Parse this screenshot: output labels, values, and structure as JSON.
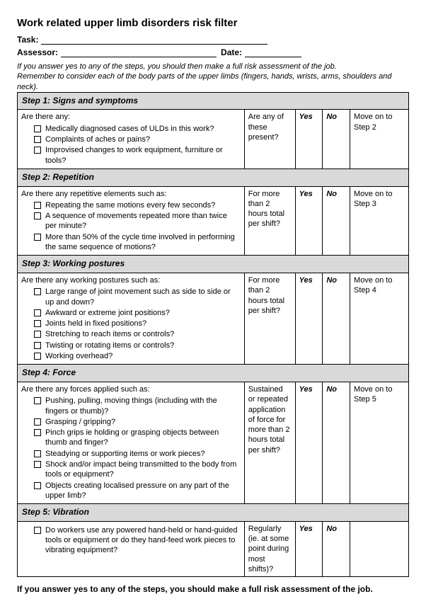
{
  "title": "Work related upper limb disorders risk filter",
  "labels": {
    "task": "Task:",
    "assessor": "Assessor:",
    "date": "Date:"
  },
  "intro_line1": "If you answer yes to any of the steps, you should then make a full risk assessment of the job.",
  "intro_line2": "Remember to consider each of the body parts of the upper limbs (fingers, hands, wrists, arms, shoulders and neck).",
  "yn": {
    "yes": "Yes",
    "no": "No"
  },
  "steps": [
    {
      "header": "Step 1: Signs and symptoms",
      "question": "Are there any:",
      "items": [
        "Medically diagnosed cases of ULDs in this work?",
        "Complaints of aches or pains?",
        "Improvised changes to work equipment, furniture or tools?"
      ],
      "subq": "Are any of these present?",
      "action": "Move on to Step 2"
    },
    {
      "header": "Step 2: Repetition",
      "question": "Are there any repetitive elements such as:",
      "items": [
        "Repeating the same motions every few seconds?",
        "A sequence of movements repeated more than twice per minute?",
        "More than 50% of the cycle time involved in performing the same sequence of motions?"
      ],
      "subq": "For more than 2 hours total per shift?",
      "action": "Move on to Step 3"
    },
    {
      "header": "Step 3: Working postures",
      "question": "Are there any working postures such as:",
      "items": [
        "Large range of joint movement such as side to side or up and down?",
        "Awkward or extreme joint positions?",
        "Joints held in fixed positions?",
        "Stretching to reach items or controls?",
        "Twisting or rotating items or controls?",
        "Working overhead?"
      ],
      "subq": "For more than 2 hours total per shift?",
      "action": "Move on to Step 4"
    },
    {
      "header": "Step 4: Force",
      "question": "Are there any forces applied such as:",
      "items": [
        "Pushing, pulling, moving things (including with the fingers or thumb)?",
        "Grasping / gripping?",
        "Pinch grips ie holding or grasping objects between thumb and finger?",
        "Steadying or supporting items or work pieces?",
        "Shock and/or impact being transmitted to the body from tools or equipment?",
        "Objects creating localised pressure on any part of the upper limb?"
      ],
      "subq": "Sustained or repeated application of force for more than 2 hours total per shift?",
      "action": "Move on to Step 5"
    },
    {
      "header": "Step 5: Vibration",
      "question": "",
      "items": [
        "Do workers use any powered hand-held or hand-guided tools or equipment or do they hand-feed work pieces to vibrating equipment?"
      ],
      "subq": "Regularly (ie. at some point during most shifts)?",
      "action": ""
    }
  ],
  "footer": "If you answer yes to any of the steps, you should make a full risk assessment of the job."
}
